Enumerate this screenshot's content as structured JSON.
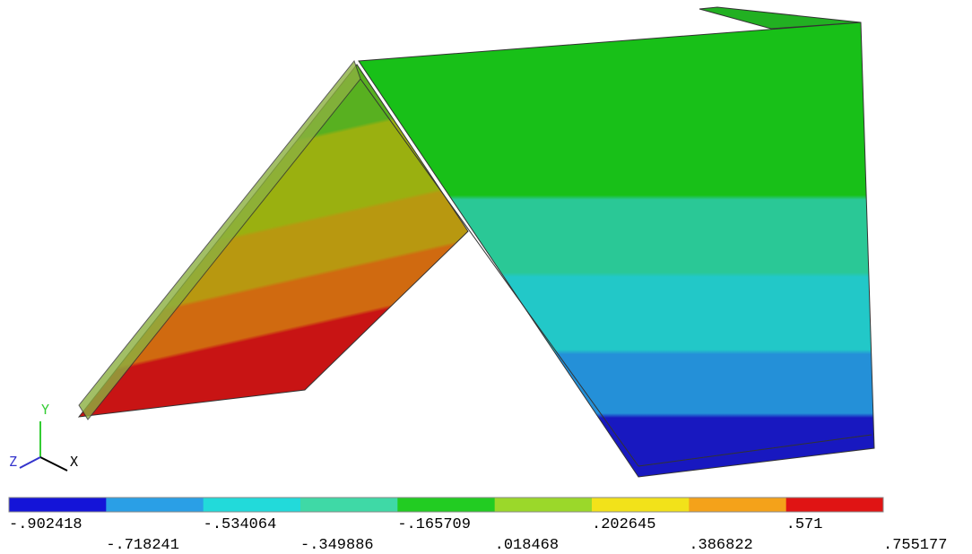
{
  "legend": {
    "colors": [
      "#1414d8",
      "#2a9fe6",
      "#22dada",
      "#3fd9a6",
      "#22cc22",
      "#9bd82a",
      "#f2e21a",
      "#f4a21a",
      "#e01414"
    ],
    "labels": [
      "-.902418",
      "-.718241",
      "-.534064",
      "-.349886",
      "-.165709",
      ".018468",
      ".202645",
      ".386822",
      ".571",
      ".755177"
    ]
  },
  "triad": {
    "x": "X",
    "y": "Y",
    "z": "Z"
  }
}
